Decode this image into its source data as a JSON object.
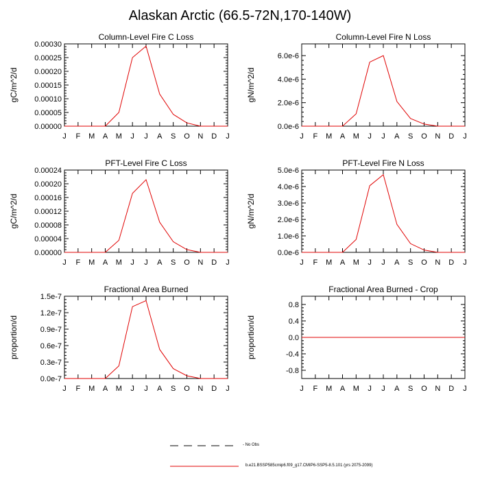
{
  "title": "Alaskan Arctic (66.5-72N,170-140W)",
  "months": [
    "J",
    "F",
    "M",
    "A",
    "M",
    "J",
    "J",
    "A",
    "S",
    "O",
    "N",
    "D",
    "J"
  ],
  "colors": {
    "model": "#e00000",
    "obs": "#000000",
    "axis": "#000000"
  },
  "legend": {
    "obs_label": "- No Obs",
    "model_label": "b.e21.BSSP585cmip6.f09_g17.CMIP6-SSP5-8.5.101 (yrs 2075-2099)"
  },
  "chart_data": [
    {
      "type": "line",
      "title": "Column-Level Fire C Loss",
      "ylabel": "gC/m^2/d",
      "ylim": [
        0,
        0.0003
      ],
      "yticks": [
        "0.00000",
        "0.00005",
        "0.00010",
        "0.00015",
        "0.00020",
        "0.00025",
        "0.00030"
      ],
      "x": [
        1,
        2,
        3,
        4,
        5,
        6,
        7,
        8,
        9,
        10,
        11,
        12,
        13
      ],
      "series": [
        {
          "values": [
            0,
            0,
            0,
            0,
            5e-05,
            0.00025,
            0.000292,
            0.000117,
            4.3e-05,
            1.2e-05,
            0,
            0,
            0
          ]
        }
      ]
    },
    {
      "type": "line",
      "title": "Column-Level Fire N Loss",
      "ylabel": "gN/m^2/d",
      "ylim": [
        0,
        7e-06
      ],
      "yticks": [
        "0.0e-6",
        "2.0e-6",
        "4.0e-6",
        "6.0e-6"
      ],
      "x": [
        1,
        2,
        3,
        4,
        5,
        6,
        7,
        8,
        9,
        10,
        11,
        12,
        13
      ],
      "series": [
        {
          "values": [
            0,
            0,
            0,
            0,
            1.05e-06,
            5.45e-06,
            6e-06,
            2.1e-06,
            6.5e-07,
            1.8e-07,
            0,
            0,
            0
          ]
        }
      ]
    },
    {
      "type": "line",
      "title": "PFT-Level Fire C Loss",
      "ylabel": "gC/m^2/d",
      "ylim": [
        0,
        0.00024
      ],
      "yticks": [
        "0.00000",
        "0.00004",
        "0.00008",
        "0.00012",
        "0.00016",
        "0.00020",
        "0.00024"
      ],
      "x": [
        1,
        2,
        3,
        4,
        5,
        6,
        7,
        8,
        9,
        10,
        11,
        12,
        13
      ],
      "series": [
        {
          "values": [
            0,
            0,
            0,
            0,
            3.5e-05,
            0.000172,
            0.000212,
            8.8e-05,
            3.1e-05,
            8e-06,
            0,
            0,
            0
          ]
        }
      ]
    },
    {
      "type": "line",
      "title": "PFT-Level Fire N Loss",
      "ylabel": "gN/m^2/d",
      "ylim": [
        0,
        5e-06
      ],
      "yticks": [
        "0.0e-6",
        "1.0e-6",
        "2.0e-6",
        "3.0e-6",
        "4.0e-6",
        "5.0e-6"
      ],
      "x": [
        1,
        2,
        3,
        4,
        5,
        6,
        7,
        8,
        9,
        10,
        11,
        12,
        13
      ],
      "series": [
        {
          "values": [
            0,
            0,
            0,
            0,
            7.8e-07,
            4.05e-06,
            4.72e-06,
            1.7e-06,
            5.3e-07,
            1.4e-07,
            0,
            0,
            0
          ]
        }
      ]
    },
    {
      "type": "line",
      "title": "Fractional Area Burned",
      "ylabel": "proportion/d",
      "ylim": [
        0,
        1.5e-07
      ],
      "yticks": [
        "0.0e-7",
        "0.3e-7",
        "0.6e-7",
        "0.9e-7",
        "1.2e-7",
        "1.5e-7"
      ],
      "x": [
        1,
        2,
        3,
        4,
        5,
        6,
        7,
        8,
        9,
        10,
        11,
        12,
        13
      ],
      "series": [
        {
          "values": [
            0,
            0,
            0,
            0,
            2.3e-08,
            1.31e-07,
            1.42e-07,
            5.3e-08,
            1.8e-08,
            5e-09,
            0,
            0,
            0
          ]
        }
      ]
    },
    {
      "type": "line",
      "title": "Fractional Area Burned - Crop",
      "ylabel": "proportion/d",
      "ylim": [
        -1,
        1
      ],
      "yticks": [
        "-0.8",
        "-0.4",
        "0.0",
        "0.4",
        "0.8"
      ],
      "ytick_values": [
        -0.8,
        -0.4,
        0,
        0.4,
        0.8
      ],
      "x": [
        1,
        2,
        3,
        4,
        5,
        6,
        7,
        8,
        9,
        10,
        11,
        12,
        13
      ],
      "series": [
        {
          "values": [
            0,
            0,
            0,
            0,
            0,
            0,
            0,
            0,
            0,
            0,
            0,
            0,
            0
          ]
        }
      ]
    }
  ]
}
